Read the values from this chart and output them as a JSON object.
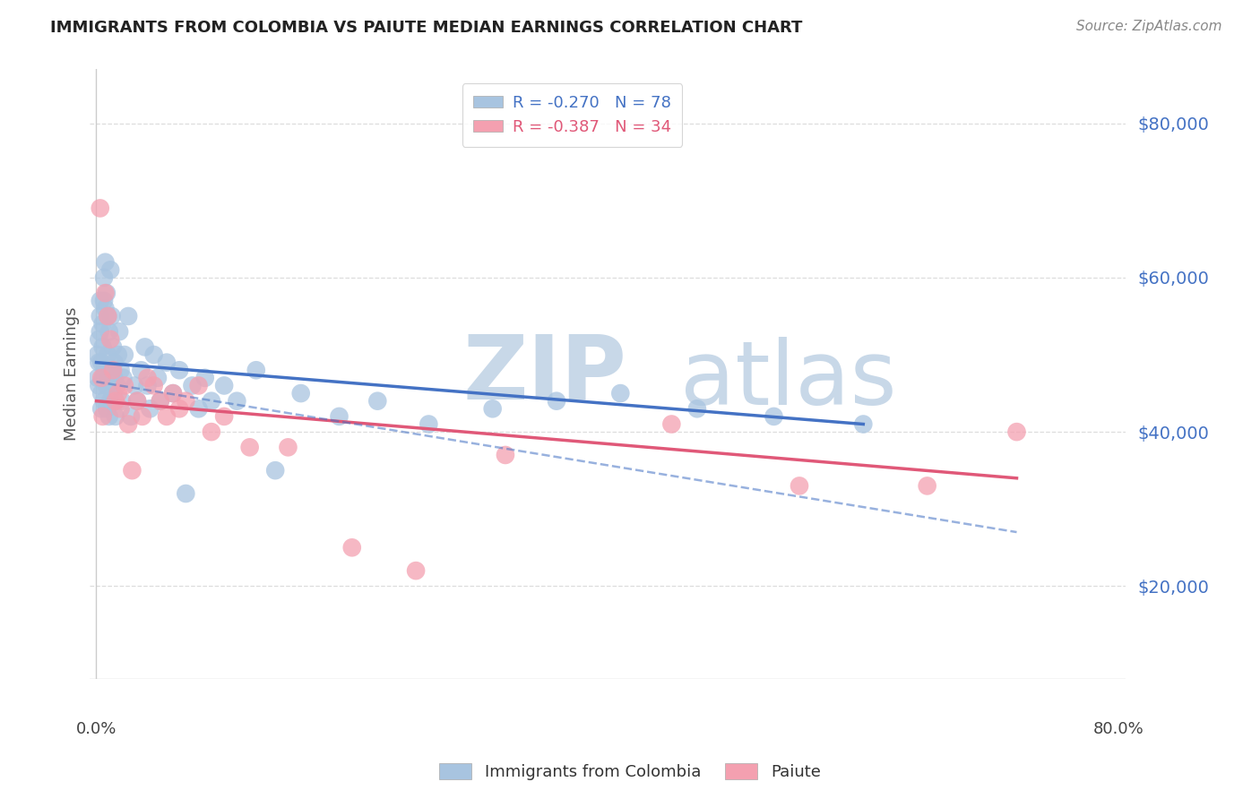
{
  "title": "IMMIGRANTS FROM COLOMBIA VS PAIUTE MEDIAN EARNINGS CORRELATION CHART",
  "source": "Source: ZipAtlas.com",
  "ylabel": "Median Earnings",
  "ytick_labels": [
    "$20,000",
    "$40,000",
    "$60,000",
    "$80,000"
  ],
  "ytick_values": [
    20000,
    40000,
    60000,
    80000
  ],
  "legend_entry1": "R = -0.270   N = 78",
  "legend_entry2": "R = -0.387   N = 34",
  "colombia_color": "#a8c4e0",
  "paiute_color": "#f4a0b0",
  "colombia_line_color": "#4472c4",
  "paiute_line_color": "#e05878",
  "watermark_color": "#c8d8e8",
  "colombia_scatter_x": [
    0.001,
    0.001,
    0.002,
    0.002,
    0.002,
    0.003,
    0.003,
    0.003,
    0.004,
    0.004,
    0.004,
    0.005,
    0.005,
    0.005,
    0.006,
    0.006,
    0.006,
    0.007,
    0.007,
    0.007,
    0.008,
    0.008,
    0.008,
    0.009,
    0.009,
    0.01,
    0.01,
    0.01,
    0.011,
    0.011,
    0.012,
    0.012,
    0.013,
    0.013,
    0.014,
    0.014,
    0.015,
    0.015,
    0.016,
    0.017,
    0.018,
    0.019,
    0.02,
    0.021,
    0.022,
    0.025,
    0.027,
    0.03,
    0.032,
    0.035,
    0.038,
    0.04,
    0.042,
    0.045,
    0.048,
    0.05,
    0.055,
    0.06,
    0.065,
    0.07,
    0.075,
    0.08,
    0.085,
    0.09,
    0.1,
    0.11,
    0.125,
    0.14,
    0.16,
    0.19,
    0.22,
    0.26,
    0.31,
    0.36,
    0.41,
    0.47,
    0.53,
    0.6
  ],
  "colombia_scatter_y": [
    47000,
    50000,
    49000,
    52000,
    46000,
    55000,
    57000,
    53000,
    45000,
    49000,
    43000,
    54000,
    51000,
    47000,
    60000,
    57000,
    44000,
    62000,
    48000,
    56000,
    43000,
    46000,
    58000,
    55000,
    50000,
    42000,
    53000,
    47000,
    44000,
    61000,
    55000,
    48000,
    51000,
    45000,
    47000,
    49000,
    44000,
    42000,
    46000,
    50000,
    53000,
    48000,
    44000,
    47000,
    50000,
    55000,
    42000,
    46000,
    44000,
    48000,
    51000,
    46000,
    43000,
    50000,
    47000,
    44000,
    49000,
    45000,
    48000,
    32000,
    46000,
    43000,
    47000,
    44000,
    46000,
    44000,
    48000,
    35000,
    45000,
    42000,
    44000,
    41000,
    43000,
    44000,
    45000,
    43000,
    42000,
    41000
  ],
  "paiute_scatter_x": [
    0.003,
    0.004,
    0.005,
    0.007,
    0.009,
    0.011,
    0.013,
    0.015,
    0.017,
    0.019,
    0.022,
    0.025,
    0.028,
    0.032,
    0.036,
    0.04,
    0.045,
    0.05,
    0.055,
    0.06,
    0.065,
    0.07,
    0.08,
    0.09,
    0.1,
    0.12,
    0.15,
    0.2,
    0.25,
    0.32,
    0.45,
    0.55,
    0.65,
    0.72
  ],
  "paiute_scatter_y": [
    69000,
    47000,
    42000,
    58000,
    55000,
    52000,
    48000,
    44000,
    45000,
    43000,
    46000,
    41000,
    35000,
    44000,
    42000,
    47000,
    46000,
    44000,
    42000,
    45000,
    43000,
    44000,
    46000,
    40000,
    42000,
    38000,
    38000,
    25000,
    22000,
    37000,
    41000,
    33000,
    33000,
    40000
  ],
  "colombia_line_x": [
    0.0,
    0.6
  ],
  "colombia_line_y": [
    49000,
    41000
  ],
  "paiute_line_x": [
    0.0,
    0.72
  ],
  "paiute_line_y": [
    44000,
    34000
  ],
  "dashed_line_x": [
    0.0,
    0.72
  ],
  "dashed_line_y": [
    46500,
    27000
  ],
  "xmin": -0.005,
  "xmax": 0.805,
  "ymin": 8000,
  "ymax": 87000,
  "background_color": "#ffffff",
  "title_color": "#222222",
  "ytick_color": "#4472c4",
  "source_color": "#888888",
  "grid_color": "#dddddd",
  "axis_color": "#cccccc"
}
